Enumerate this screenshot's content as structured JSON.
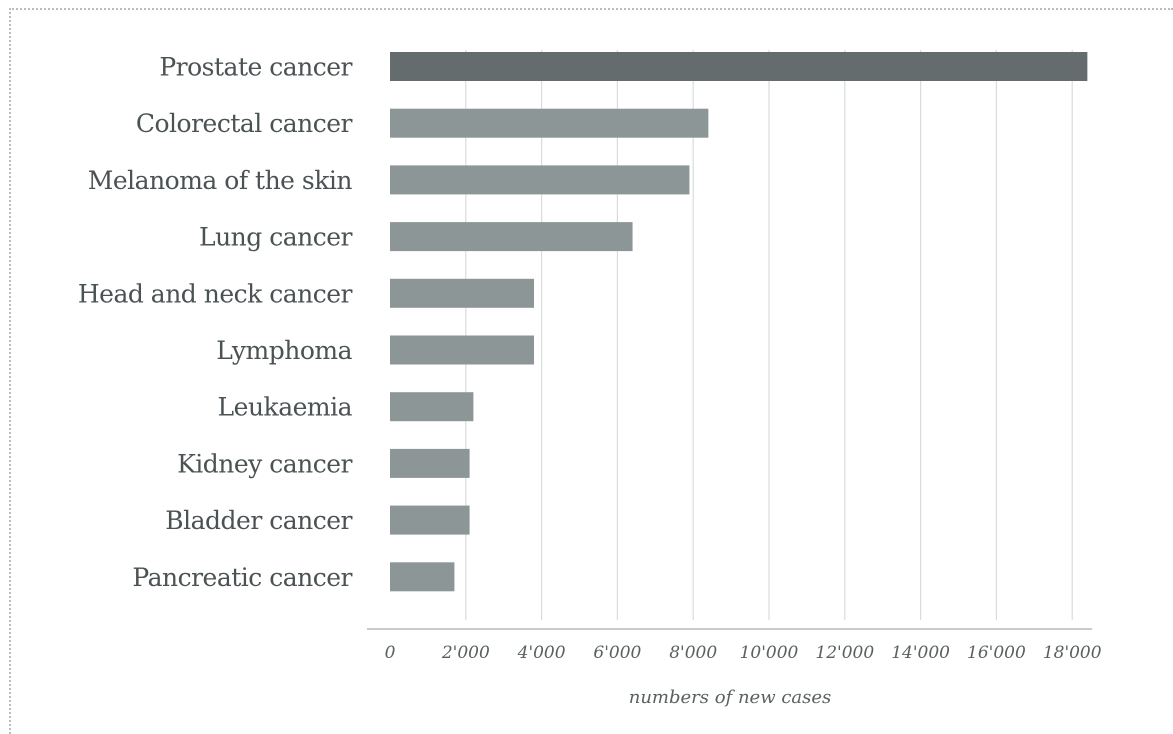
{
  "chart_data": {
    "type": "bar",
    "orientation": "horizontal",
    "title": "",
    "xlabel": "numbers of new cases",
    "ylabel": "",
    "xlim": [
      0,
      18500
    ],
    "x_ticks": [
      0,
      2000,
      4000,
      6000,
      8000,
      10000,
      12000,
      14000,
      16000,
      18000
    ],
    "x_tick_labels": [
      "0",
      "2'000",
      "4'000",
      "6'000",
      "8'000",
      "10'000",
      "12'000",
      "14'000",
      "16'000",
      "18'000"
    ],
    "grid": true,
    "categories": [
      "Prostate cancer",
      "Colorectal cancer",
      "Melanoma of the skin",
      "Lung cancer",
      "Head and neck cancer",
      "Lymphoma",
      "Leukaemia",
      "Kidney cancer",
      "Bladder cancer",
      "Pancreatic cancer"
    ],
    "values": [
      18400,
      8400,
      7900,
      6400,
      3800,
      3800,
      2200,
      2100,
      2100,
      1700
    ],
    "colors": {
      "highlight": "#646c6d",
      "bar": "#8d9697",
      "grid": "#d9dcdc",
      "axis": "#b5baba"
    }
  }
}
